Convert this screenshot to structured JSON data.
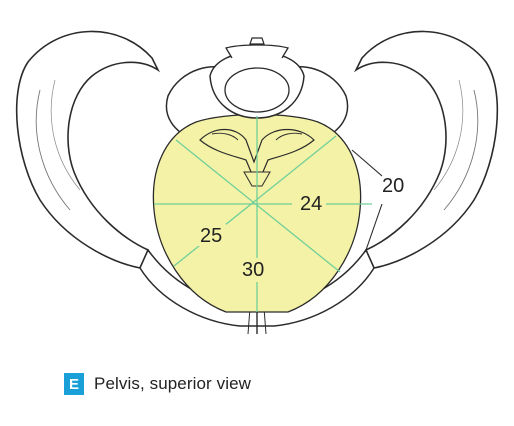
{
  "figure": {
    "measurements": {
      "transverse": "24",
      "oblique": "25",
      "conjugate": "30",
      "side": "20"
    },
    "colors": {
      "inlet_fill": "#f4f2a6",
      "lines": "#6fcf9a",
      "outline": "#2b2b2b"
    }
  },
  "caption": {
    "badge": "E",
    "text": "Pelvis, superior view"
  }
}
